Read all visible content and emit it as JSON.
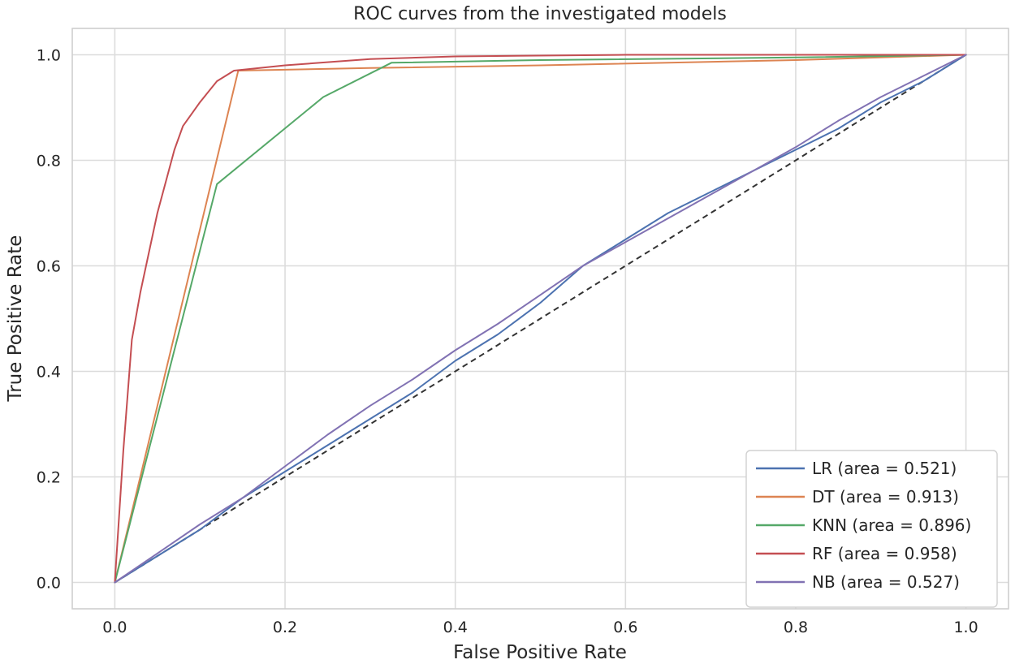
{
  "chart_data": {
    "type": "line",
    "title": "ROC curves from the investigated models",
    "xlabel": "False Positive Rate",
    "ylabel": "True Positive Rate",
    "xlim": [
      -0.05,
      1.05
    ],
    "ylim": [
      -0.05,
      1.05
    ],
    "xticks": [
      0.0,
      0.2,
      0.4,
      0.6,
      0.8,
      1.0
    ],
    "yticks": [
      0.0,
      0.2,
      0.4,
      0.6,
      0.8,
      1.0
    ],
    "xtick_labels": [
      "0.0",
      "0.2",
      "0.4",
      "0.6",
      "0.8",
      "1.0"
    ],
    "ytick_labels": [
      "0.0",
      "0.2",
      "0.4",
      "0.6",
      "0.8",
      "1.0"
    ],
    "grid": true,
    "legend_position": "lower-right",
    "diagonal": {
      "x": [
        0,
        1
      ],
      "y": [
        0,
        1
      ],
      "style": "dashed",
      "color": "#333333"
    },
    "series": [
      {
        "name": "LR (area = 0.521)",
        "color": "#4c72b0",
        "x": [
          0,
          0.05,
          0.1,
          0.15,
          0.2,
          0.25,
          0.3,
          0.35,
          0.4,
          0.45,
          0.5,
          0.55,
          0.6,
          0.65,
          0.7,
          0.75,
          0.8,
          0.85,
          0.9,
          0.95,
          1.0
        ],
        "y": [
          0,
          0.05,
          0.1,
          0.16,
          0.21,
          0.26,
          0.31,
          0.36,
          0.42,
          0.47,
          0.53,
          0.6,
          0.65,
          0.7,
          0.74,
          0.78,
          0.82,
          0.86,
          0.91,
          0.95,
          1.0
        ]
      },
      {
        "name": "DT (area = 0.913)",
        "color": "#dd8452",
        "x": [
          0,
          0.145,
          0.3,
          0.5,
          0.8,
          1.0
        ],
        "y": [
          0,
          0.97,
          0.975,
          0.98,
          0.99,
          1.0
        ]
      },
      {
        "name": "KNN (area = 0.896)",
        "color": "#55a868",
        "x": [
          0,
          0.12,
          0.245,
          0.325,
          0.5,
          0.8,
          1.0
        ],
        "y": [
          0,
          0.755,
          0.92,
          0.985,
          0.99,
          0.995,
          1.0
        ]
      },
      {
        "name": "RF (area = 0.958)",
        "color": "#c44e52",
        "x": [
          0,
          0.01,
          0.02,
          0.03,
          0.05,
          0.07,
          0.08,
          0.1,
          0.12,
          0.14,
          0.2,
          0.3,
          0.4,
          0.6,
          1.0
        ],
        "y": [
          0,
          0.25,
          0.46,
          0.55,
          0.7,
          0.82,
          0.865,
          0.91,
          0.95,
          0.97,
          0.98,
          0.992,
          0.997,
          1.0,
          1.0
        ]
      },
      {
        "name": "NB (area = 0.527)",
        "color": "#8172b3",
        "x": [
          0,
          0.05,
          0.1,
          0.15,
          0.2,
          0.25,
          0.3,
          0.35,
          0.4,
          0.45,
          0.5,
          0.55,
          0.6,
          0.65,
          0.7,
          0.75,
          0.8,
          0.85,
          0.9,
          0.95,
          1.0
        ],
        "y": [
          0,
          0.055,
          0.11,
          0.16,
          0.22,
          0.28,
          0.335,
          0.385,
          0.44,
          0.49,
          0.545,
          0.6,
          0.645,
          0.69,
          0.735,
          0.78,
          0.825,
          0.875,
          0.92,
          0.96,
          1.0
        ]
      }
    ]
  }
}
